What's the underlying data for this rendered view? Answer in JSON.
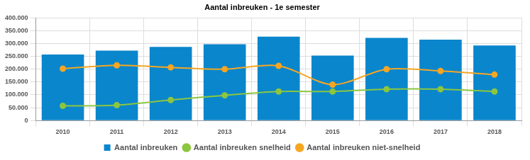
{
  "chart_data": {
    "type": "bar",
    "title": "Aantal inbreuken - 1e semester",
    "categories": [
      "2010",
      "2011",
      "2012",
      "2013",
      "2014",
      "2015",
      "2016",
      "2017",
      "2018"
    ],
    "series": [
      {
        "name": "Aantal inbreuken",
        "type": "bar",
        "color": "#0a86cc",
        "values": [
          257000,
          272000,
          287000,
          297000,
          327000,
          253000,
          322000,
          315000,
          292000
        ]
      },
      {
        "name": "Aantal inbreuken snelheid",
        "type": "line",
        "color": "#8cc63f",
        "marker": "circle",
        "values": [
          57000,
          60000,
          80000,
          98000,
          113000,
          113000,
          122000,
          122000,
          113000
        ]
      },
      {
        "name": "Aantal inbreuken niet-snelheid",
        "type": "line",
        "color": "#f5a623",
        "marker": "circle",
        "values": [
          202000,
          215000,
          207000,
          200000,
          213000,
          140000,
          200000,
          193000,
          179000
        ]
      }
    ],
    "ylim": [
      0,
      400000
    ],
    "yticks": [
      0,
      {
        "value": 50000,
        "label": "50.000"
      },
      {
        "value": 100000,
        "label": "100.000"
      },
      {
        "value": 150000,
        "label": "150.000"
      },
      {
        "value": 200000,
        "label": "200.000"
      },
      {
        "value": 250000,
        "label": "250.000"
      },
      {
        "value": 300000,
        "label": "300.000"
      },
      {
        "value": 350000,
        "label": "350.000"
      },
      {
        "value": 400000,
        "label": "400.000"
      }
    ],
    "grid": true,
    "legend": "bottom"
  }
}
